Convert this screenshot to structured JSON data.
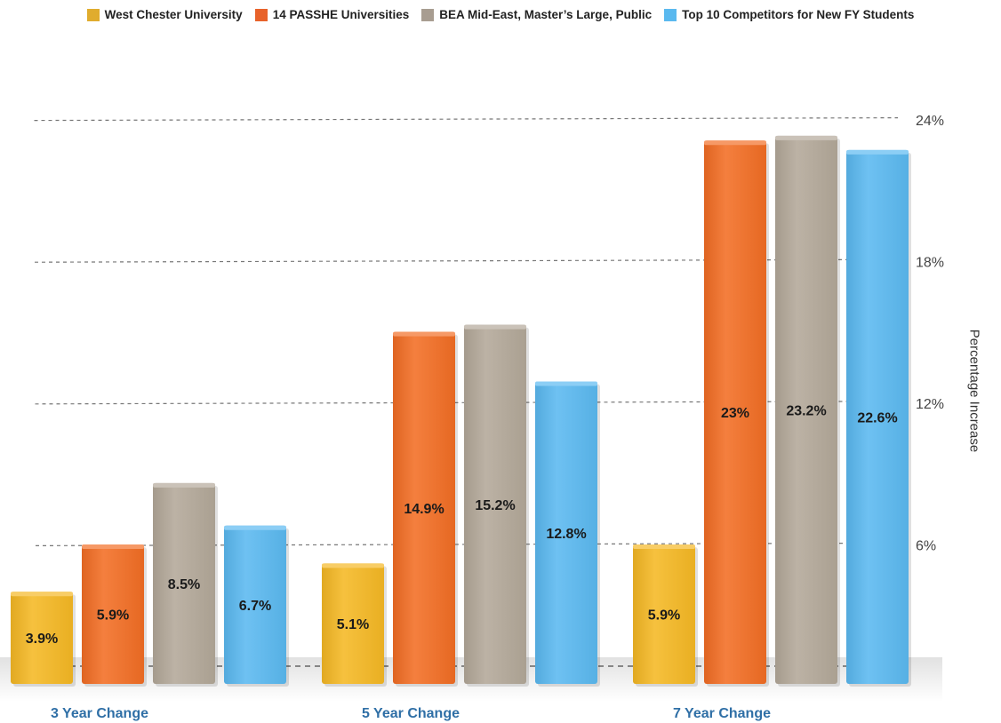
{
  "chart_data": {
    "type": "bar",
    "categories": [
      "3 Year Change",
      "5 Year Change",
      "7 Year Change"
    ],
    "series": [
      {
        "name": "West Chester University",
        "values": [
          3.9,
          5.1,
          5.9
        ],
        "labels": [
          "3.9%",
          "5.1%",
          "5.9%"
        ],
        "color": "#f5b824"
      },
      {
        "name": "14 PASSHE Universities",
        "values": [
          5.9,
          14.9,
          23
        ],
        "labels": [
          "5.9%",
          "14.9%",
          "23%"
        ],
        "color": "#f26d24"
      },
      {
        "name": "BEA Mid-East, Master’s Large, Public",
        "values": [
          8.5,
          15.2,
          23.2
        ],
        "labels": [
          "8.5%",
          "15.2%",
          "23.2%"
        ],
        "color": "#b3a899"
      },
      {
        "name": "Top 10 Competitors for New FY Students",
        "values": [
          6.7,
          12.8,
          22.6
        ],
        "labels": [
          "6.7%",
          "12.8%",
          "22.6%"
        ],
        "color": "#5ab9f0"
      }
    ],
    "yticks": [
      "6%",
      "12%",
      "18%",
      "24%"
    ],
    "ylabel": "Percentage Increase",
    "ylim": [
      0,
      24
    ],
    "grid": true,
    "legend_position": "top"
  }
}
